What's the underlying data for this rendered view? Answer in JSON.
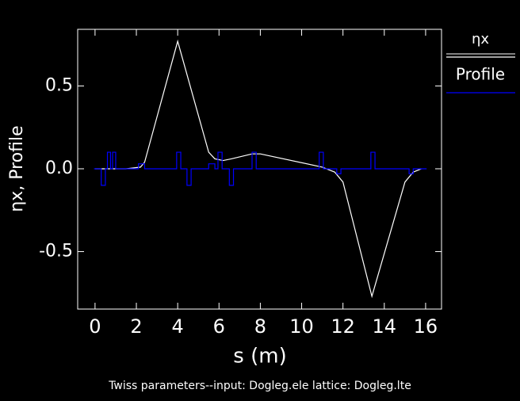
{
  "chart_data": {
    "type": "line",
    "xlabel": "s (m)",
    "ylabel": "ηx, Profile",
    "footer": "Twiss parameters--input: Dogleg.ele   lattice: Dogleg.lte",
    "xlim": [
      -0.84,
      16.77
    ],
    "ylim": [
      -0.847,
      0.842
    ],
    "xticks": [
      0,
      2,
      4,
      6,
      8,
      10,
      12,
      14,
      16
    ],
    "yticks": [
      -0.5,
      {
        "value": 0,
        "label": "0.0"
      },
      0.5
    ],
    "series": [
      {
        "name": "ηx",
        "color": "#ffffff",
        "x": [
          0,
          1.5,
          2.2,
          2.4,
          4.0,
          5.5,
          5.8,
          6.2,
          6.6,
          7.6,
          8.0,
          11.0,
          11.6,
          12.0,
          13.4,
          15.0,
          15.4,
          15.8
        ],
        "values": [
          0,
          0,
          0.01,
          0.04,
          0.77,
          0.1,
          0.06,
          0.05,
          0.06,
          0.09,
          0.09,
          0.01,
          -0.02,
          -0.08,
          -0.77,
          -0.08,
          -0.02,
          0
        ]
      },
      {
        "name": "Profile",
        "color": "#0000ff",
        "x": [
          -0.05,
          0.3,
          0.3,
          0.5,
          0.5,
          0.6,
          0.6,
          0.75,
          0.75,
          0.85,
          0.85,
          1.0,
          1.0,
          2.1,
          2.1,
          2.4,
          2.4,
          3.95,
          3.95,
          4.15,
          4.15,
          4.45,
          4.45,
          4.65,
          4.65,
          5.5,
          5.5,
          5.8,
          5.8,
          5.95,
          5.95,
          6.15,
          6.15,
          6.5,
          6.5,
          6.7,
          6.7,
          7.6,
          7.6,
          7.8,
          7.8,
          10.85,
          10.85,
          11.05,
          11.05,
          11.7,
          11.7,
          11.9,
          11.9,
          13.35,
          13.35,
          13.55,
          13.55,
          15.2,
          15.2,
          15.4,
          15.4,
          16.05
        ],
        "values": [
          0,
          0,
          -0.1,
          -0.1,
          0,
          0,
          0.1,
          0.1,
          0,
          0,
          0.1,
          0.1,
          0,
          0,
          0.03,
          0.03,
          0,
          0,
          0.1,
          0.1,
          0,
          0,
          -0.1,
          -0.1,
          0,
          0,
          0.03,
          0.03,
          0,
          0,
          0.1,
          0.1,
          0,
          0,
          -0.1,
          -0.1,
          0,
          0,
          0.1,
          0.1,
          0,
          0,
          0.1,
          0.1,
          0,
          0,
          -0.03,
          -0.03,
          0,
          0,
          0.1,
          0.1,
          0,
          0,
          -0.03,
          -0.03,
          0,
          0
        ]
      }
    ]
  }
}
